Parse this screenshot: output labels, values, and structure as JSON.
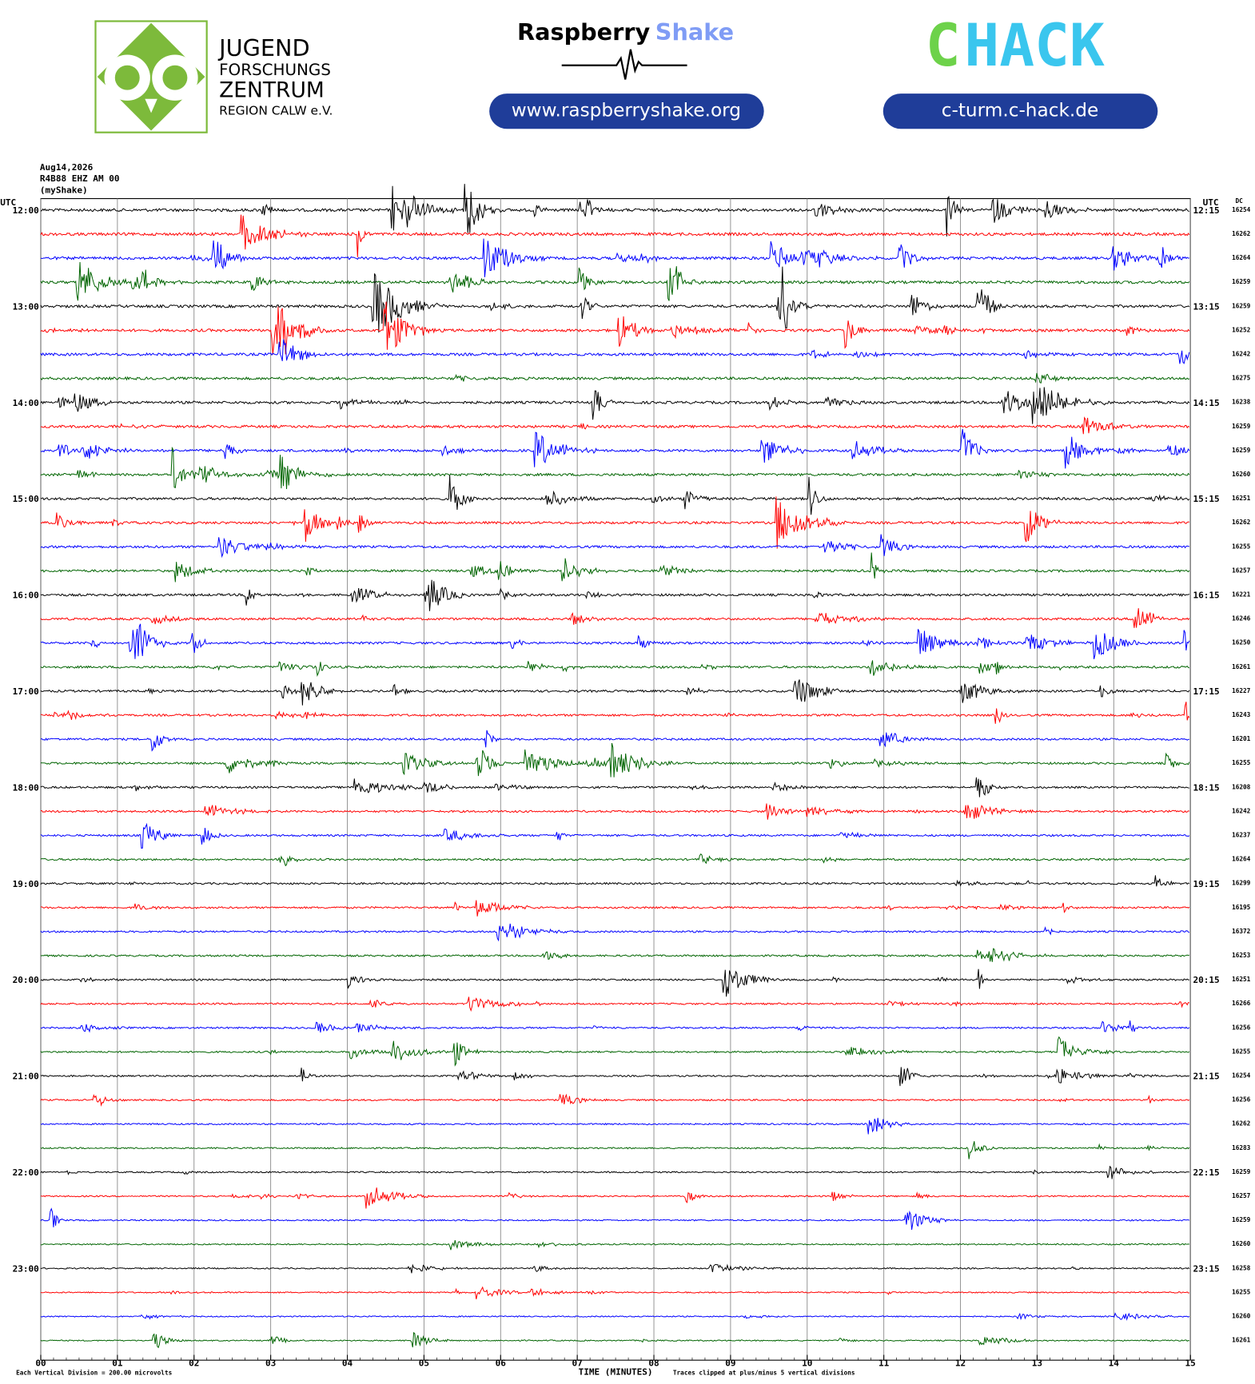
{
  "header": {
    "jfz_lines": [
      "JUGEND",
      "FORSCHUNGS",
      "ZENTRUM",
      "REGION CALW e.V."
    ],
    "rs_word1": "Raspberry",
    "rs_word2": "Shake",
    "rs_url": "www.raspberryshake.org",
    "chack_c": "C",
    "chack_rest": "HACK",
    "chack_url": "c-turm.c-hack.de"
  },
  "chart_data": {
    "type": "helicorder",
    "date": "Aug14,2026",
    "station": "R4B88 EHZ AM 00",
    "network": "(myShake)",
    "left_axis_title": "UTC",
    "right_axis_title": "UTC",
    "dc_title": "DC",
    "left_labels": [
      "12:00",
      "13:00",
      "14:00",
      "15:00",
      "16:00",
      "17:00",
      "18:00",
      "19:00",
      "20:00",
      "21:00",
      "22:00",
      "23:00"
    ],
    "right_labels": [
      "12:15",
      "13:15",
      "14:15",
      "15:15",
      "16:15",
      "17:15",
      "18:15",
      "19:15",
      "20:15",
      "21:15",
      "22:15",
      "23:15"
    ],
    "dc_values": [
      16254,
      16262,
      16264,
      16259,
      16259,
      16252,
      16242,
      16275,
      16238,
      16259,
      16259,
      16260,
      16251,
      16262,
      16255,
      16257,
      16221,
      16246,
      16250,
      16261,
      16227,
      16243,
      16201,
      16255,
      16208,
      16242,
      16237,
      16264,
      16299,
      16195,
      16372,
      16253,
      16251,
      16266,
      16256,
      16255,
      16254,
      16256,
      16262,
      16283,
      16259,
      16257,
      16259,
      16260,
      16258,
      16255,
      16260,
      16261
    ],
    "xlim": [
      0,
      15
    ],
    "xticks": [
      {
        "value": 0,
        "label": "00"
      },
      {
        "value": 1,
        "label": "01"
      },
      {
        "value": 2,
        "label": "02"
      },
      {
        "value": 3,
        "label": "03"
      },
      {
        "value": 4,
        "label": "04"
      },
      {
        "value": 5,
        "label": "05"
      },
      {
        "value": 6,
        "label": "06"
      },
      {
        "value": 7,
        "label": "07"
      },
      {
        "value": 8,
        "label": "08"
      },
      {
        "value": 9,
        "label": "09"
      },
      10,
      11,
      12,
      13,
      14,
      15
    ],
    "xlabel": "TIME (MINUTES)",
    "footnote_left": "Each Vertical Division =  200.00 microvolts",
    "footnote_right": "Traces clipped at plus/minus 5 vertical divisions",
    "colors": [
      "#000000",
      "#ff0000",
      "#0000ff",
      "#006400"
    ],
    "grid": true
  }
}
